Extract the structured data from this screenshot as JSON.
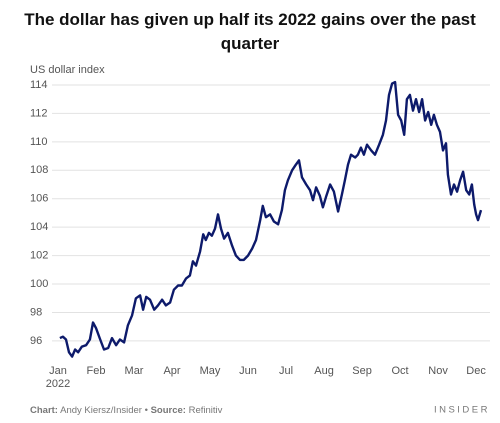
{
  "chart_data": {
    "type": "line",
    "title": "The dollar has given up half its 2022 gains over the past quarter",
    "y_label": "US dollar index",
    "x": [
      0.05,
      0.13,
      0.21,
      0.29,
      0.37,
      0.45,
      0.53,
      0.63,
      0.74,
      0.84,
      0.92,
      1.0,
      1.11,
      1.21,
      1.32,
      1.42,
      1.53,
      1.63,
      1.74,
      1.84,
      1.95,
      2.05,
      2.16,
      2.24,
      2.32,
      2.42,
      2.53,
      2.63,
      2.74,
      2.84,
      2.95,
      3.05,
      3.16,
      3.26,
      3.37,
      3.47,
      3.55,
      3.63,
      3.74,
      3.82,
      3.89,
      3.97,
      4.05,
      4.13,
      4.21,
      4.29,
      4.37,
      4.47,
      4.58,
      4.68,
      4.79,
      4.89,
      5.0,
      5.11,
      5.21,
      5.32,
      5.39,
      5.47,
      5.58,
      5.68,
      5.79,
      5.89,
      5.97,
      6.05,
      6.16,
      6.26,
      6.34,
      6.42,
      6.53,
      6.63,
      6.71,
      6.79,
      6.89,
      6.97,
      7.05,
      7.16,
      7.26,
      7.37,
      7.47,
      7.55,
      7.63,
      7.71,
      7.82,
      7.89,
      7.97,
      8.05,
      8.13,
      8.24,
      8.34,
      8.45,
      8.55,
      8.63,
      8.71,
      8.79,
      8.87,
      8.95,
      9.03,
      9.11,
      9.18,
      9.26,
      9.34,
      9.42,
      9.5,
      9.58,
      9.66,
      9.74,
      9.82,
      9.89,
      9.97,
      10.05,
      10.13,
      10.21,
      10.26,
      10.34,
      10.42,
      10.5,
      10.58,
      10.66,
      10.74,
      10.82,
      10.89,
      10.95,
      11.0,
      11.05,
      11.13
    ],
    "series": [
      {
        "color": "#0d1a6b",
        "values": [
          96.2,
          96.3,
          96.1,
          95.2,
          94.9,
          95.4,
          95.2,
          95.6,
          95.7,
          96.1,
          97.3,
          96.9,
          96.1,
          95.4,
          95.5,
          96.2,
          95.7,
          96.1,
          95.9,
          97.1,
          97.8,
          99.0,
          99.2,
          98.2,
          99.1,
          98.9,
          98.2,
          98.5,
          98.9,
          98.5,
          98.7,
          99.6,
          99.9,
          99.9,
          100.4,
          100.6,
          101.6,
          101.3,
          102.3,
          103.5,
          103.1,
          103.6,
          103.4,
          103.9,
          104.9,
          103.9,
          103.2,
          103.6,
          102.7,
          102.0,
          101.7,
          101.7,
          102.0,
          102.5,
          103.1,
          104.5,
          105.5,
          104.7,
          104.9,
          104.4,
          104.2,
          105.2,
          106.6,
          107.3,
          108.0,
          108.4,
          108.7,
          107.5,
          107.0,
          106.6,
          105.9,
          106.8,
          106.2,
          105.4,
          106.1,
          107.0,
          106.5,
          105.1,
          106.3,
          107.3,
          108.4,
          109.1,
          108.9,
          109.1,
          109.6,
          109.1,
          109.8,
          109.4,
          109.1,
          109.8,
          110.5,
          111.5,
          113.3,
          114.1,
          114.2,
          111.9,
          111.5,
          110.5,
          113.0,
          113.3,
          112.2,
          113.0,
          112.1,
          113.0,
          111.5,
          112.1,
          111.2,
          111.9,
          111.2,
          110.7,
          109.4,
          109.9,
          107.7,
          106.3,
          107.0,
          106.5,
          107.3,
          107.9,
          106.6,
          106.3,
          107.0,
          105.6,
          104.9,
          104.5,
          105.2
        ]
      }
    ],
    "xlim": [
      0,
      11.13
    ],
    "xticks": [
      {
        "value": 0,
        "label": "Jan 2022"
      },
      {
        "value": 1,
        "label": "Feb"
      },
      {
        "value": 2,
        "label": "Mar"
      },
      {
        "value": 3,
        "label": "Apr"
      },
      {
        "value": 4,
        "label": "May"
      },
      {
        "value": 5,
        "label": "Jun"
      },
      {
        "value": 6,
        "label": "Jul"
      },
      {
        "value": 7,
        "label": "Aug"
      },
      {
        "value": 8,
        "label": "Sep"
      },
      {
        "value": 9,
        "label": "Oct"
      },
      {
        "value": 10,
        "label": "Nov"
      },
      {
        "value": 11,
        "label": "Dec"
      }
    ],
    "ylim": [
      94.8,
      114.4
    ],
    "yticks": [
      96,
      98,
      100,
      102,
      104,
      106,
      108,
      110,
      112,
      114
    ],
    "grid": true
  },
  "footer": {
    "chart_label": "Chart:",
    "credit": "Andy Kiersz/Insider",
    "separator": "•",
    "source_label": "Source:",
    "source": "Refinitiv",
    "logo": "INSIDER"
  }
}
